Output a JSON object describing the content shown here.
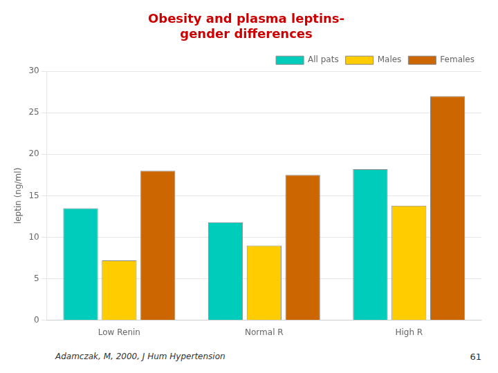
{
  "chart_data": {
    "type": "bar",
    "title": [
      "Obesity and plasma leptins-",
      "gender differences"
    ],
    "categories": [
      "Low Renin",
      "Normal R",
      "High R"
    ],
    "series": [
      {
        "name": "All pats",
        "color": "#00ccbb",
        "values": [
          13.5,
          11.8,
          18.2
        ]
      },
      {
        "name": "Males",
        "color": "#ffcc00",
        "values": [
          7.2,
          9.0,
          13.8
        ]
      },
      {
        "name": "Females",
        "color": "#cc6600",
        "values": [
          18.0,
          17.5,
          27.0
        ]
      }
    ],
    "ylabel": "leptin (ng/ml)",
    "ylim": [
      0,
      30
    ],
    "yticks": [
      0,
      5,
      10,
      15,
      20,
      25,
      30
    ],
    "grid": true,
    "legend": "upper right",
    "annotations": [
      "Adamczak, M, 2000, J Hum Hypertension",
      "61"
    ]
  }
}
